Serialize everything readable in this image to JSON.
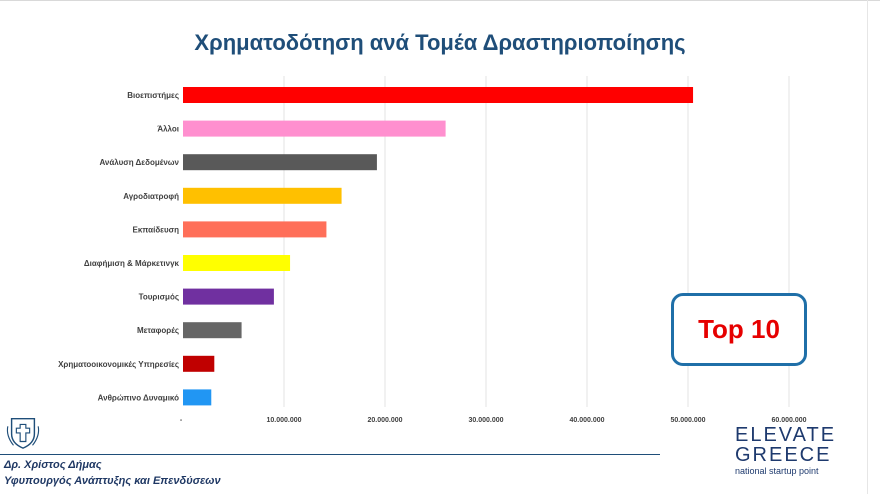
{
  "title": "Χρηματοδότηση ανά Τομέα Δραστηριοποίησης",
  "badge": "Top 10",
  "footer": {
    "author": "Δρ. Χρίστος Δήμας",
    "ministry": "Υφυπουργός Ανάπτυξης και Επενδύσεων"
  },
  "logo": {
    "line1": "ELEVATE",
    "line2": "GREECE",
    "tagline": "national startup point"
  },
  "chart_data": {
    "type": "bar",
    "orientation": "horizontal",
    "title": "Χρηματοδότηση ανά Τομέα Δραστηριοποίησης",
    "categories": [
      "Βιοεπιστήμες",
      "Άλλοι",
      "Ανάλυση Δεδομένων",
      "Αγροδιατροφή",
      "Εκπαίδευση",
      "Διαφήμιση & Μάρκετινγκ",
      "Τουρισμός",
      "Μεταφορές",
      "Χρηματοοικονομικές Υπηρεσίες",
      "Ανθρώπινο Δυναμικό"
    ],
    "values": [
      50500000,
      26000000,
      19200000,
      15700000,
      14200000,
      10600000,
      9000000,
      5800000,
      3100000,
      2800000
    ],
    "colors": [
      "#ff0000",
      "#ff8fcf",
      "#595959",
      "#ffc000",
      "#ff6f59",
      "#ffff00",
      "#7030a0",
      "#666666",
      "#c00000",
      "#2196f3"
    ],
    "xlim": [
      0,
      60000000
    ],
    "xticks": [
      0,
      10000000,
      20000000,
      30000000,
      40000000,
      50000000,
      60000000
    ],
    "xtick_labels": [
      "-",
      "10.000.000",
      "20.000.000",
      "30.000.000",
      "40.000.000",
      "50.000.000",
      "60.000.000"
    ],
    "grid": true
  }
}
